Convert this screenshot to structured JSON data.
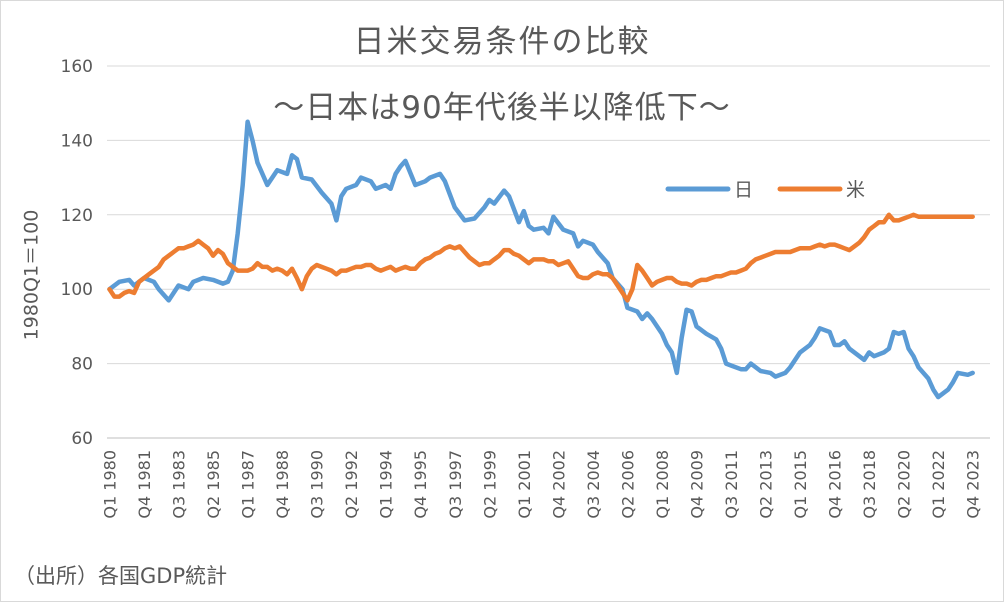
{
  "chart_data": {
    "type": "line",
    "title": "日米交易条件の比較",
    "subtitle": "～日本は90年代後半以降低下～",
    "ylabel": "1980Q1＝100",
    "xlabel": "",
    "ylim": [
      60,
      160
    ],
    "yticks": [
      60,
      80,
      100,
      120,
      140,
      160
    ],
    "grid": true,
    "legend_position": "top-right",
    "x_tick_labels": [
      "Q1 1980",
      "Q4 1981",
      "Q3 1983",
      "Q2 1985",
      "Q1 1987",
      "Q4 1988",
      "Q3 1990",
      "Q2 1992",
      "Q1 1994",
      "Q4 1995",
      "Q3 1997",
      "Q2 1999",
      "Q1 2001",
      "Q4 2002",
      "Q3 2004",
      "Q2 2006",
      "Q1 2008",
      "Q4 2009",
      "Q3 2011",
      "Q2 2013",
      "Q1 2015",
      "Q4 2016",
      "Q3 2018",
      "Q2 2020",
      "Q1 2022",
      "Q4 2023"
    ],
    "x_tick_quarter_index": [
      0,
      7,
      14,
      21,
      28,
      35,
      42,
      49,
      56,
      63,
      70,
      77,
      84,
      91,
      98,
      105,
      112,
      119,
      126,
      133,
      140,
      147,
      154,
      161,
      168,
      175
    ],
    "n_quarters": 179,
    "series": [
      {
        "name": "日",
        "color": "#5b9bd5",
        "points": [
          [
            0,
            100
          ],
          [
            2,
            102
          ],
          [
            4,
            102.5
          ],
          [
            5,
            101
          ],
          [
            7,
            103
          ],
          [
            9,
            102
          ],
          [
            10,
            100
          ],
          [
            12,
            97
          ],
          [
            14,
            101
          ],
          [
            16,
            100
          ],
          [
            17,
            102
          ],
          [
            19,
            103
          ],
          [
            21,
            102.5
          ],
          [
            23,
            101.5
          ],
          [
            24,
            102
          ],
          [
            25,
            105
          ],
          [
            26,
            115
          ],
          [
            27,
            128
          ],
          [
            28,
            145
          ],
          [
            29,
            140
          ],
          [
            30,
            134
          ],
          [
            32,
            128
          ],
          [
            34,
            132
          ],
          [
            36,
            131
          ],
          [
            37,
            136
          ],
          [
            38,
            135
          ],
          [
            39,
            130
          ],
          [
            41,
            129.5
          ],
          [
            43,
            126
          ],
          [
            45,
            123
          ],
          [
            46,
            118.5
          ],
          [
            47,
            125
          ],
          [
            48,
            127
          ],
          [
            50,
            128
          ],
          [
            51,
            130
          ],
          [
            53,
            129
          ],
          [
            54,
            127
          ],
          [
            56,
            128
          ],
          [
            57,
            127
          ],
          [
            58,
            131
          ],
          [
            59,
            133
          ],
          [
            60,
            134.5
          ],
          [
            62,
            128
          ],
          [
            64,
            129
          ],
          [
            65,
            130
          ],
          [
            67,
            131
          ],
          [
            68,
            129
          ],
          [
            70,
            122
          ],
          [
            72,
            118.5
          ],
          [
            74,
            119
          ],
          [
            76,
            122
          ],
          [
            77,
            124
          ],
          [
            78,
            123
          ],
          [
            80,
            126.5
          ],
          [
            81,
            125
          ],
          [
            83,
            118
          ],
          [
            84,
            121
          ],
          [
            85,
            117
          ],
          [
            86,
            116
          ],
          [
            88,
            116.5
          ],
          [
            89,
            115
          ],
          [
            90,
            119.5
          ],
          [
            92,
            116
          ],
          [
            94,
            115
          ],
          [
            95,
            111.5
          ],
          [
            96,
            113
          ],
          [
            98,
            112
          ],
          [
            99,
            110
          ],
          [
            101,
            107
          ],
          [
            102,
            103
          ],
          [
            104,
            100
          ],
          [
            105,
            95
          ],
          [
            107,
            94
          ],
          [
            108,
            92
          ],
          [
            109,
            93.5
          ],
          [
            110,
            92
          ],
          [
            112,
            88
          ],
          [
            113,
            85
          ],
          [
            114,
            83
          ],
          [
            115,
            77.5
          ],
          [
            116,
            87
          ],
          [
            117,
            94.5
          ],
          [
            118,
            94
          ],
          [
            119,
            90
          ],
          [
            121,
            88
          ],
          [
            123,
            86.5
          ],
          [
            124,
            84
          ],
          [
            125,
            80
          ],
          [
            126,
            79.5
          ],
          [
            128,
            78.5
          ],
          [
            129,
            78.5
          ],
          [
            130,
            80
          ],
          [
            132,
            78
          ],
          [
            134,
            77.5
          ],
          [
            135,
            76.5
          ],
          [
            137,
            77.5
          ],
          [
            138,
            79
          ],
          [
            139,
            81
          ],
          [
            140,
            83
          ],
          [
            142,
            85
          ],
          [
            143,
            87
          ],
          [
            144,
            89.5
          ],
          [
            146,
            88.5
          ],
          [
            147,
            85
          ],
          [
            148,
            85
          ],
          [
            149,
            86
          ],
          [
            150,
            84
          ],
          [
            152,
            82
          ],
          [
            153,
            81
          ],
          [
            154,
            83
          ],
          [
            155,
            82
          ],
          [
            157,
            83
          ],
          [
            158,
            84
          ],
          [
            159,
            88.5
          ],
          [
            160,
            88
          ],
          [
            161,
            88.5
          ],
          [
            162,
            84
          ],
          [
            163,
            82
          ],
          [
            164,
            79
          ],
          [
            166,
            76
          ],
          [
            167,
            73
          ],
          [
            168,
            71
          ],
          [
            170,
            73
          ],
          [
            171,
            75
          ],
          [
            172,
            77.5
          ],
          [
            174,
            77
          ],
          [
            175,
            77.5
          ]
        ]
      },
      {
        "name": "米",
        "color": "#ed7d31",
        "points": [
          [
            0,
            100
          ],
          [
            1,
            98
          ],
          [
            2,
            98
          ],
          [
            3,
            99
          ],
          [
            4,
            99.5
          ],
          [
            5,
            99
          ],
          [
            6,
            102
          ],
          [
            8,
            104
          ],
          [
            9,
            105
          ],
          [
            10,
            106
          ],
          [
            11,
            108
          ],
          [
            12,
            109
          ],
          [
            13,
            110
          ],
          [
            14,
            111
          ],
          [
            15,
            111
          ],
          [
            16,
            111.5
          ],
          [
            17,
            112
          ],
          [
            18,
            113
          ],
          [
            19,
            112
          ],
          [
            20,
            111
          ],
          [
            21,
            109
          ],
          [
            22,
            110.5
          ],
          [
            23,
            109.5
          ],
          [
            24,
            107
          ],
          [
            26,
            105
          ],
          [
            28,
            105
          ],
          [
            29,
            105.5
          ],
          [
            30,
            107
          ],
          [
            31,
            106
          ],
          [
            32,
            106
          ],
          [
            33,
            105
          ],
          [
            34,
            105.5
          ],
          [
            35,
            105
          ],
          [
            36,
            104
          ],
          [
            37,
            105.5
          ],
          [
            38,
            103
          ],
          [
            39,
            100
          ],
          [
            40,
            103.5
          ],
          [
            41,
            105.5
          ],
          [
            42,
            106.5
          ],
          [
            43,
            106
          ],
          [
            44,
            105.5
          ],
          [
            45,
            105
          ],
          [
            46,
            104
          ],
          [
            47,
            105
          ],
          [
            48,
            105
          ],
          [
            49,
            105.5
          ],
          [
            50,
            106
          ],
          [
            51,
            106
          ],
          [
            52,
            106.5
          ],
          [
            53,
            106.5
          ],
          [
            54,
            105.5
          ],
          [
            55,
            105
          ],
          [
            56,
            105.5
          ],
          [
            57,
            106
          ],
          [
            58,
            105
          ],
          [
            59,
            105.5
          ],
          [
            60,
            106
          ],
          [
            61,
            105.5
          ],
          [
            62,
            105.5
          ],
          [
            63,
            107
          ],
          [
            64,
            108
          ],
          [
            65,
            108.5
          ],
          [
            66,
            109.5
          ],
          [
            67,
            110
          ],
          [
            68,
            111
          ],
          [
            69,
            111.5
          ],
          [
            70,
            111
          ],
          [
            71,
            111.5
          ],
          [
            72,
            110
          ],
          [
            73,
            108.5
          ],
          [
            74,
            107.5
          ],
          [
            75,
            106.5
          ],
          [
            76,
            107
          ],
          [
            77,
            107
          ],
          [
            78,
            108
          ],
          [
            79,
            109
          ],
          [
            80,
            110.5
          ],
          [
            81,
            110.5
          ],
          [
            82,
            109.5
          ],
          [
            83,
            109
          ],
          [
            84,
            108
          ],
          [
            85,
            107
          ],
          [
            86,
            108
          ],
          [
            87,
            108
          ],
          [
            88,
            108
          ],
          [
            89,
            107.5
          ],
          [
            90,
            107.5
          ],
          [
            91,
            106.5
          ],
          [
            92,
            107
          ],
          [
            93,
            107.5
          ],
          [
            94,
            105.5
          ],
          [
            95,
            103.5
          ],
          [
            96,
            103
          ],
          [
            97,
            103
          ],
          [
            98,
            104
          ],
          [
            99,
            104.5
          ],
          [
            100,
            104
          ],
          [
            101,
            104
          ],
          [
            102,
            103
          ],
          [
            103,
            101
          ],
          [
            104,
            99
          ],
          [
            105,
            97
          ],
          [
            106,
            100
          ],
          [
            107,
            106.5
          ],
          [
            108,
            105
          ],
          [
            109,
            103
          ],
          [
            110,
            101
          ],
          [
            111,
            102
          ],
          [
            112,
            102.5
          ],
          [
            113,
            103
          ],
          [
            114,
            103
          ],
          [
            115,
            102
          ],
          [
            116,
            101.5
          ],
          [
            117,
            101.5
          ],
          [
            118,
            101
          ],
          [
            119,
            102
          ],
          [
            120,
            102.5
          ],
          [
            121,
            102.5
          ],
          [
            122,
            103
          ],
          [
            123,
            103.5
          ],
          [
            124,
            103.5
          ],
          [
            125,
            104
          ],
          [
            126,
            104.5
          ],
          [
            127,
            104.5
          ],
          [
            128,
            105
          ],
          [
            129,
            105.5
          ],
          [
            130,
            107
          ],
          [
            131,
            108
          ],
          [
            132,
            108.5
          ],
          [
            133,
            109
          ],
          [
            134,
            109.5
          ],
          [
            135,
            110
          ],
          [
            136,
            110
          ],
          [
            137,
            110
          ],
          [
            138,
            110
          ],
          [
            139,
            110.5
          ],
          [
            140,
            111
          ],
          [
            141,
            111
          ],
          [
            142,
            111
          ],
          [
            143,
            111.5
          ],
          [
            144,
            112
          ],
          [
            145,
            111.5
          ],
          [
            146,
            112
          ],
          [
            147,
            112
          ],
          [
            148,
            111.5
          ],
          [
            149,
            111
          ],
          [
            150,
            110.5
          ],
          [
            151,
            111.5
          ],
          [
            152,
            112.5
          ],
          [
            153,
            114
          ],
          [
            154,
            116
          ],
          [
            155,
            117
          ],
          [
            156,
            118
          ],
          [
            157,
            118
          ],
          [
            158,
            120
          ],
          [
            159,
            118.5
          ],
          [
            160,
            118.5
          ],
          [
            161,
            119
          ],
          [
            162,
            119.5
          ],
          [
            163,
            120
          ],
          [
            164,
            119.5
          ],
          [
            165,
            119.5
          ],
          [
            166,
            119.5
          ],
          [
            167,
            119.5
          ],
          [
            168,
            119.5
          ],
          [
            169,
            119.5
          ],
          [
            170,
            119.5
          ],
          [
            171,
            119.5
          ],
          [
            172,
            119.5
          ],
          [
            173,
            119.5
          ],
          [
            174,
            119.5
          ],
          [
            175,
            119.5
          ]
        ]
      }
    ]
  },
  "source": "（出所）各国GDP統計"
}
